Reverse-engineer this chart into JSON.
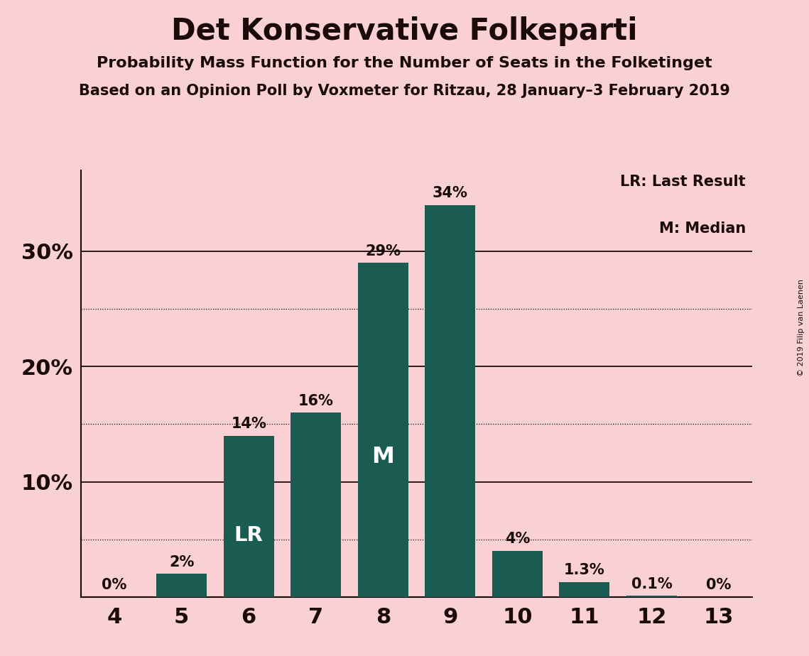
{
  "title": "Det Konservative Folkeparti",
  "subtitle1": "Probability Mass Function for the Number of Seats in the Folketinget",
  "subtitle2": "Based on an Opinion Poll by Voxmeter for Ritzau, 28 January–3 February 2019",
  "copyright": "© 2019 Filip van Laenen",
  "categories": [
    4,
    5,
    6,
    7,
    8,
    9,
    10,
    11,
    12,
    13
  ],
  "values": [
    0,
    2,
    14,
    16,
    29,
    34,
    4,
    1.3,
    0.1,
    0
  ],
  "bar_labels": [
    "0%",
    "2%",
    "14%",
    "16%",
    "29%",
    "34%",
    "4%",
    "1.3%",
    "0.1%",
    "0%"
  ],
  "bar_color": "#1a5c52",
  "background_color": "#f9d0d4",
  "text_color": "#1a0a0a",
  "lr_bar": 6,
  "median_bar": 8,
  "label_lr": "LR",
  "label_m": "M",
  "legend_lr": "LR: Last Result",
  "legend_m": "M: Median",
  "solid_yticks": [
    10,
    20,
    30
  ],
  "dotted_yticks": [
    5,
    15,
    25
  ],
  "ylim": [
    0,
    37
  ],
  "xlim": [
    3.5,
    13.5
  ]
}
